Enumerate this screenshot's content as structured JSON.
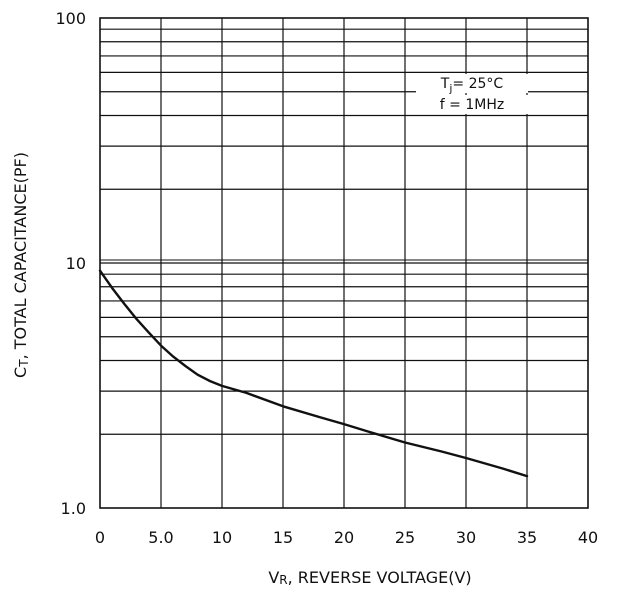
{
  "chart_data": {
    "type": "line",
    "title": "",
    "xlabel": {
      "main": "V",
      "sub": "R",
      "rest": ", REVERSE  VOLTAGE(V)"
    },
    "ylabel": {
      "main": "C",
      "sub": "T",
      "rest": ", TOTAL  CAPACITANCE(PF)"
    },
    "xlim": [
      0,
      40
    ],
    "ylim": [
      1,
      100
    ],
    "yscale": "log",
    "grid": true,
    "xticks": [
      0,
      5,
      10,
      15,
      20,
      25,
      30,
      35,
      40
    ],
    "xtick_labels": [
      "0",
      "5.0",
      "10",
      "15",
      "20",
      "25",
      "30",
      "35",
      "40"
    ],
    "yticks": [
      1,
      10,
      100
    ],
    "ytick_labels": [
      "1.0",
      "10",
      "100"
    ],
    "annotations": [
      {
        "main": "T",
        "sub": "j",
        "rest": "= 25°C"
      },
      {
        "main": "f = 1MHz",
        "sub": "",
        "rest": ""
      }
    ],
    "series": [
      {
        "x": [
          0,
          1,
          2,
          3,
          4,
          5,
          6,
          7,
          8,
          9,
          10,
          12,
          15,
          18,
          20,
          22,
          25,
          28,
          30,
          33,
          35
        ],
        "y": [
          9.3,
          7.9,
          6.8,
          5.9,
          5.2,
          4.6,
          4.15,
          3.8,
          3.5,
          3.3,
          3.15,
          2.95,
          2.6,
          2.35,
          2.2,
          2.05,
          1.85,
          1.7,
          1.6,
          1.45,
          1.35
        ]
      }
    ]
  }
}
